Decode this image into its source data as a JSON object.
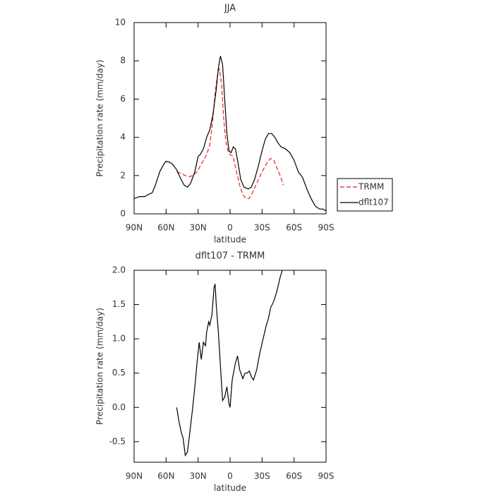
{
  "chart_data": [
    {
      "type": "line",
      "title": "JJA",
      "xlabel": "latitude",
      "ylabel": "Precipitation rate (mm/day)",
      "xlim": [
        90,
        -90
      ],
      "xticks": [
        {
          "value": 90,
          "label": "90N"
        },
        {
          "value": 60,
          "label": "60N"
        },
        {
          "value": 30,
          "label": "30N"
        },
        0,
        {
          "value": -30,
          "label": "30S"
        },
        {
          "value": -60,
          "label": "60S"
        },
        {
          "value": -90,
          "label": "90S"
        }
      ],
      "ylim": [
        0,
        10
      ],
      "yticks": [
        0,
        2,
        4,
        6,
        8,
        10
      ],
      "legend": "outside-right",
      "series": [
        {
          "name": "TRMM",
          "color": "#e8211e",
          "dash": true,
          "x": [
            50,
            45,
            42,
            38,
            35,
            31,
            27,
            22,
            19,
            16,
            14,
            12,
            10,
            8,
            6,
            4,
            2,
            0,
            -3,
            -6,
            -9,
            -12,
            -15,
            -18,
            -21,
            -25,
            -30,
            -35,
            -38,
            -41,
            -44,
            -47,
            -50
          ],
          "values": [
            2.2,
            2.1,
            2.0,
            1.95,
            2.0,
            2.2,
            2.6,
            3.1,
            3.6,
            5.0,
            6.3,
            7.2,
            7.6,
            6.8,
            5.0,
            3.8,
            3.3,
            3.1,
            3.0,
            2.2,
            1.5,
            1.0,
            0.8,
            0.8,
            1.1,
            1.6,
            2.2,
            2.7,
            2.9,
            2.8,
            2.4,
            2.0,
            1.5
          ]
        },
        {
          "name": "dflt107",
          "color": "#000000",
          "dash": false,
          "x": [
            90,
            85,
            80,
            77,
            73,
            70,
            66,
            62,
            60,
            57,
            54,
            50,
            46,
            43,
            40,
            37,
            33,
            30,
            28,
            25,
            22,
            19,
            16,
            13,
            11,
            9,
            7,
            5,
            3,
            1,
            -1,
            -3,
            -5,
            -7,
            -10,
            -13,
            -17,
            -20,
            -23,
            -27,
            -30,
            -33,
            -36,
            -39,
            -42,
            -45,
            -48,
            -52,
            -56,
            -60,
            -64,
            -68,
            -72,
            -76,
            -80,
            -84,
            -87,
            -90
          ],
          "values": [
            0.8,
            0.9,
            0.9,
            1.0,
            1.1,
            1.5,
            2.2,
            2.6,
            2.75,
            2.7,
            2.6,
            2.3,
            1.8,
            1.5,
            1.4,
            1.6,
            2.2,
            3.0,
            3.1,
            3.4,
            4.0,
            4.4,
            5.2,
            6.5,
            7.6,
            8.25,
            7.8,
            6.0,
            4.2,
            3.3,
            3.2,
            3.5,
            3.4,
            2.8,
            1.8,
            1.4,
            1.3,
            1.4,
            1.8,
            2.6,
            3.3,
            3.9,
            4.2,
            4.2,
            4.0,
            3.7,
            3.5,
            3.4,
            3.2,
            2.8,
            2.2,
            1.9,
            1.3,
            0.8,
            0.4,
            0.25,
            0.25,
            0.15
          ]
        }
      ]
    },
    {
      "type": "line",
      "title": "dflt107 - TRMM",
      "xlabel": "latitude",
      "ylabel": "Precipitation rate (mm/day)",
      "xlim": [
        90,
        -90
      ],
      "xticks": [
        {
          "value": 90,
          "label": "90N"
        },
        {
          "value": 60,
          "label": "60N"
        },
        {
          "value": 30,
          "label": "30N"
        },
        0,
        {
          "value": -30,
          "label": "30S"
        },
        {
          "value": -60,
          "label": "60S"
        },
        {
          "value": -90,
          "label": "90S"
        }
      ],
      "ylim": [
        -0.8,
        2.0
      ],
      "yticks": [
        -0.5,
        {
          "value": 0,
          "label": "0.0"
        },
        0.5,
        {
          "value": 1,
          "label": "1.0"
        },
        1.5,
        {
          "value": 2,
          "label": "2.0"
        }
      ],
      "series": [
        {
          "color": "#000000",
          "dash": false,
          "x": [
            50,
            48,
            46,
            44,
            42,
            40,
            38,
            35,
            33,
            31,
            29,
            27,
            25,
            23,
            22,
            20,
            19,
            17,
            15,
            14,
            13,
            11,
            9,
            7,
            5,
            3,
            1,
            0,
            -2,
            -5,
            -7,
            -9,
            -12,
            -14,
            -16,
            -18,
            -20,
            -22,
            -25,
            -28,
            -31,
            -34,
            -36,
            -38,
            -41,
            -44,
            -47,
            -49
          ],
          "values": [
            0.0,
            -0.2,
            -0.35,
            -0.45,
            -0.7,
            -0.65,
            -0.4,
            0.0,
            0.3,
            0.65,
            0.95,
            0.7,
            0.95,
            0.9,
            1.1,
            1.25,
            1.2,
            1.35,
            1.75,
            1.8,
            1.5,
            1.1,
            0.6,
            0.1,
            0.15,
            0.3,
            0.05,
            0.0,
            0.4,
            0.65,
            0.75,
            0.55,
            0.42,
            0.5,
            0.5,
            0.53,
            0.45,
            0.4,
            0.55,
            0.8,
            1.0,
            1.2,
            1.3,
            1.45,
            1.55,
            1.7,
            1.9,
            2.0
          ]
        }
      ]
    }
  ]
}
